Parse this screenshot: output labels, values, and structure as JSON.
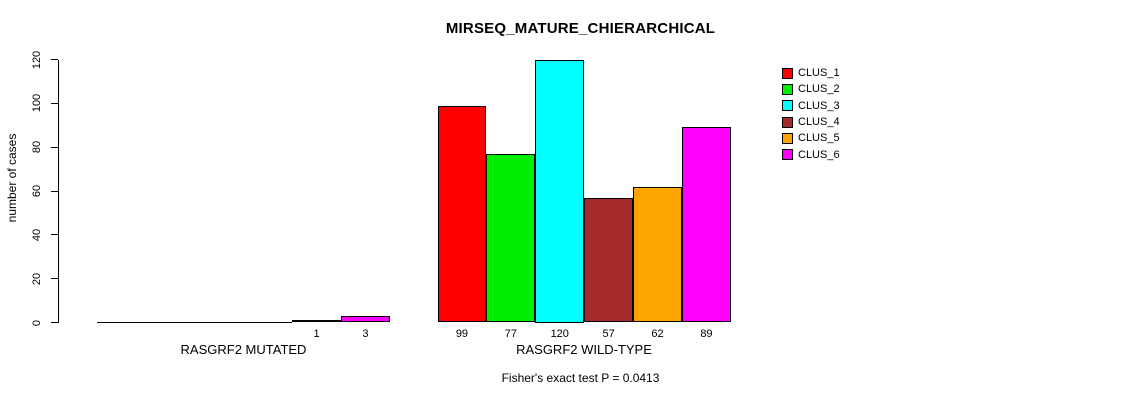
{
  "chart_data": {
    "type": "bar",
    "grouped": true,
    "title": "MIRSEQ_MATURE_CHIERARCHICAL",
    "ylabel": "number of cases",
    "xlabel": "",
    "ylim": [
      0,
      120
    ],
    "yticks": [
      0,
      20,
      40,
      60,
      80,
      100,
      120
    ],
    "grid": false,
    "legend_position": "right-inside",
    "categories": [
      "RASGRF2 MUTATED",
      "RASGRF2 WILD-TYPE"
    ],
    "series": [
      {
        "name": "CLUS_1",
        "color": "#FF0000",
        "values": [
          0,
          99
        ]
      },
      {
        "name": "CLUS_2",
        "color": "#00EE00",
        "values": [
          0,
          77
        ]
      },
      {
        "name": "CLUS_3",
        "color": "#00FFFF",
        "values": [
          0,
          120
        ]
      },
      {
        "name": "CLUS_4",
        "color": "#A52A2A",
        "values": [
          0,
          57
        ]
      },
      {
        "name": "CLUS_5",
        "color": "#FFA500",
        "values": [
          1,
          62
        ]
      },
      {
        "name": "CLUS_6",
        "color": "#FF00FF",
        "values": [
          3,
          89
        ]
      }
    ],
    "bar_value_labels": [
      [
        "",
        "",
        "",
        "",
        "1",
        "3"
      ],
      [
        "99",
        "77",
        "120",
        "57",
        "62",
        "89"
      ]
    ],
    "annotation": "Fisher's exact test P = 0.0413"
  },
  "colors": {
    "background": "#FFFFFF",
    "axis": "#000000",
    "text": "#000000"
  }
}
